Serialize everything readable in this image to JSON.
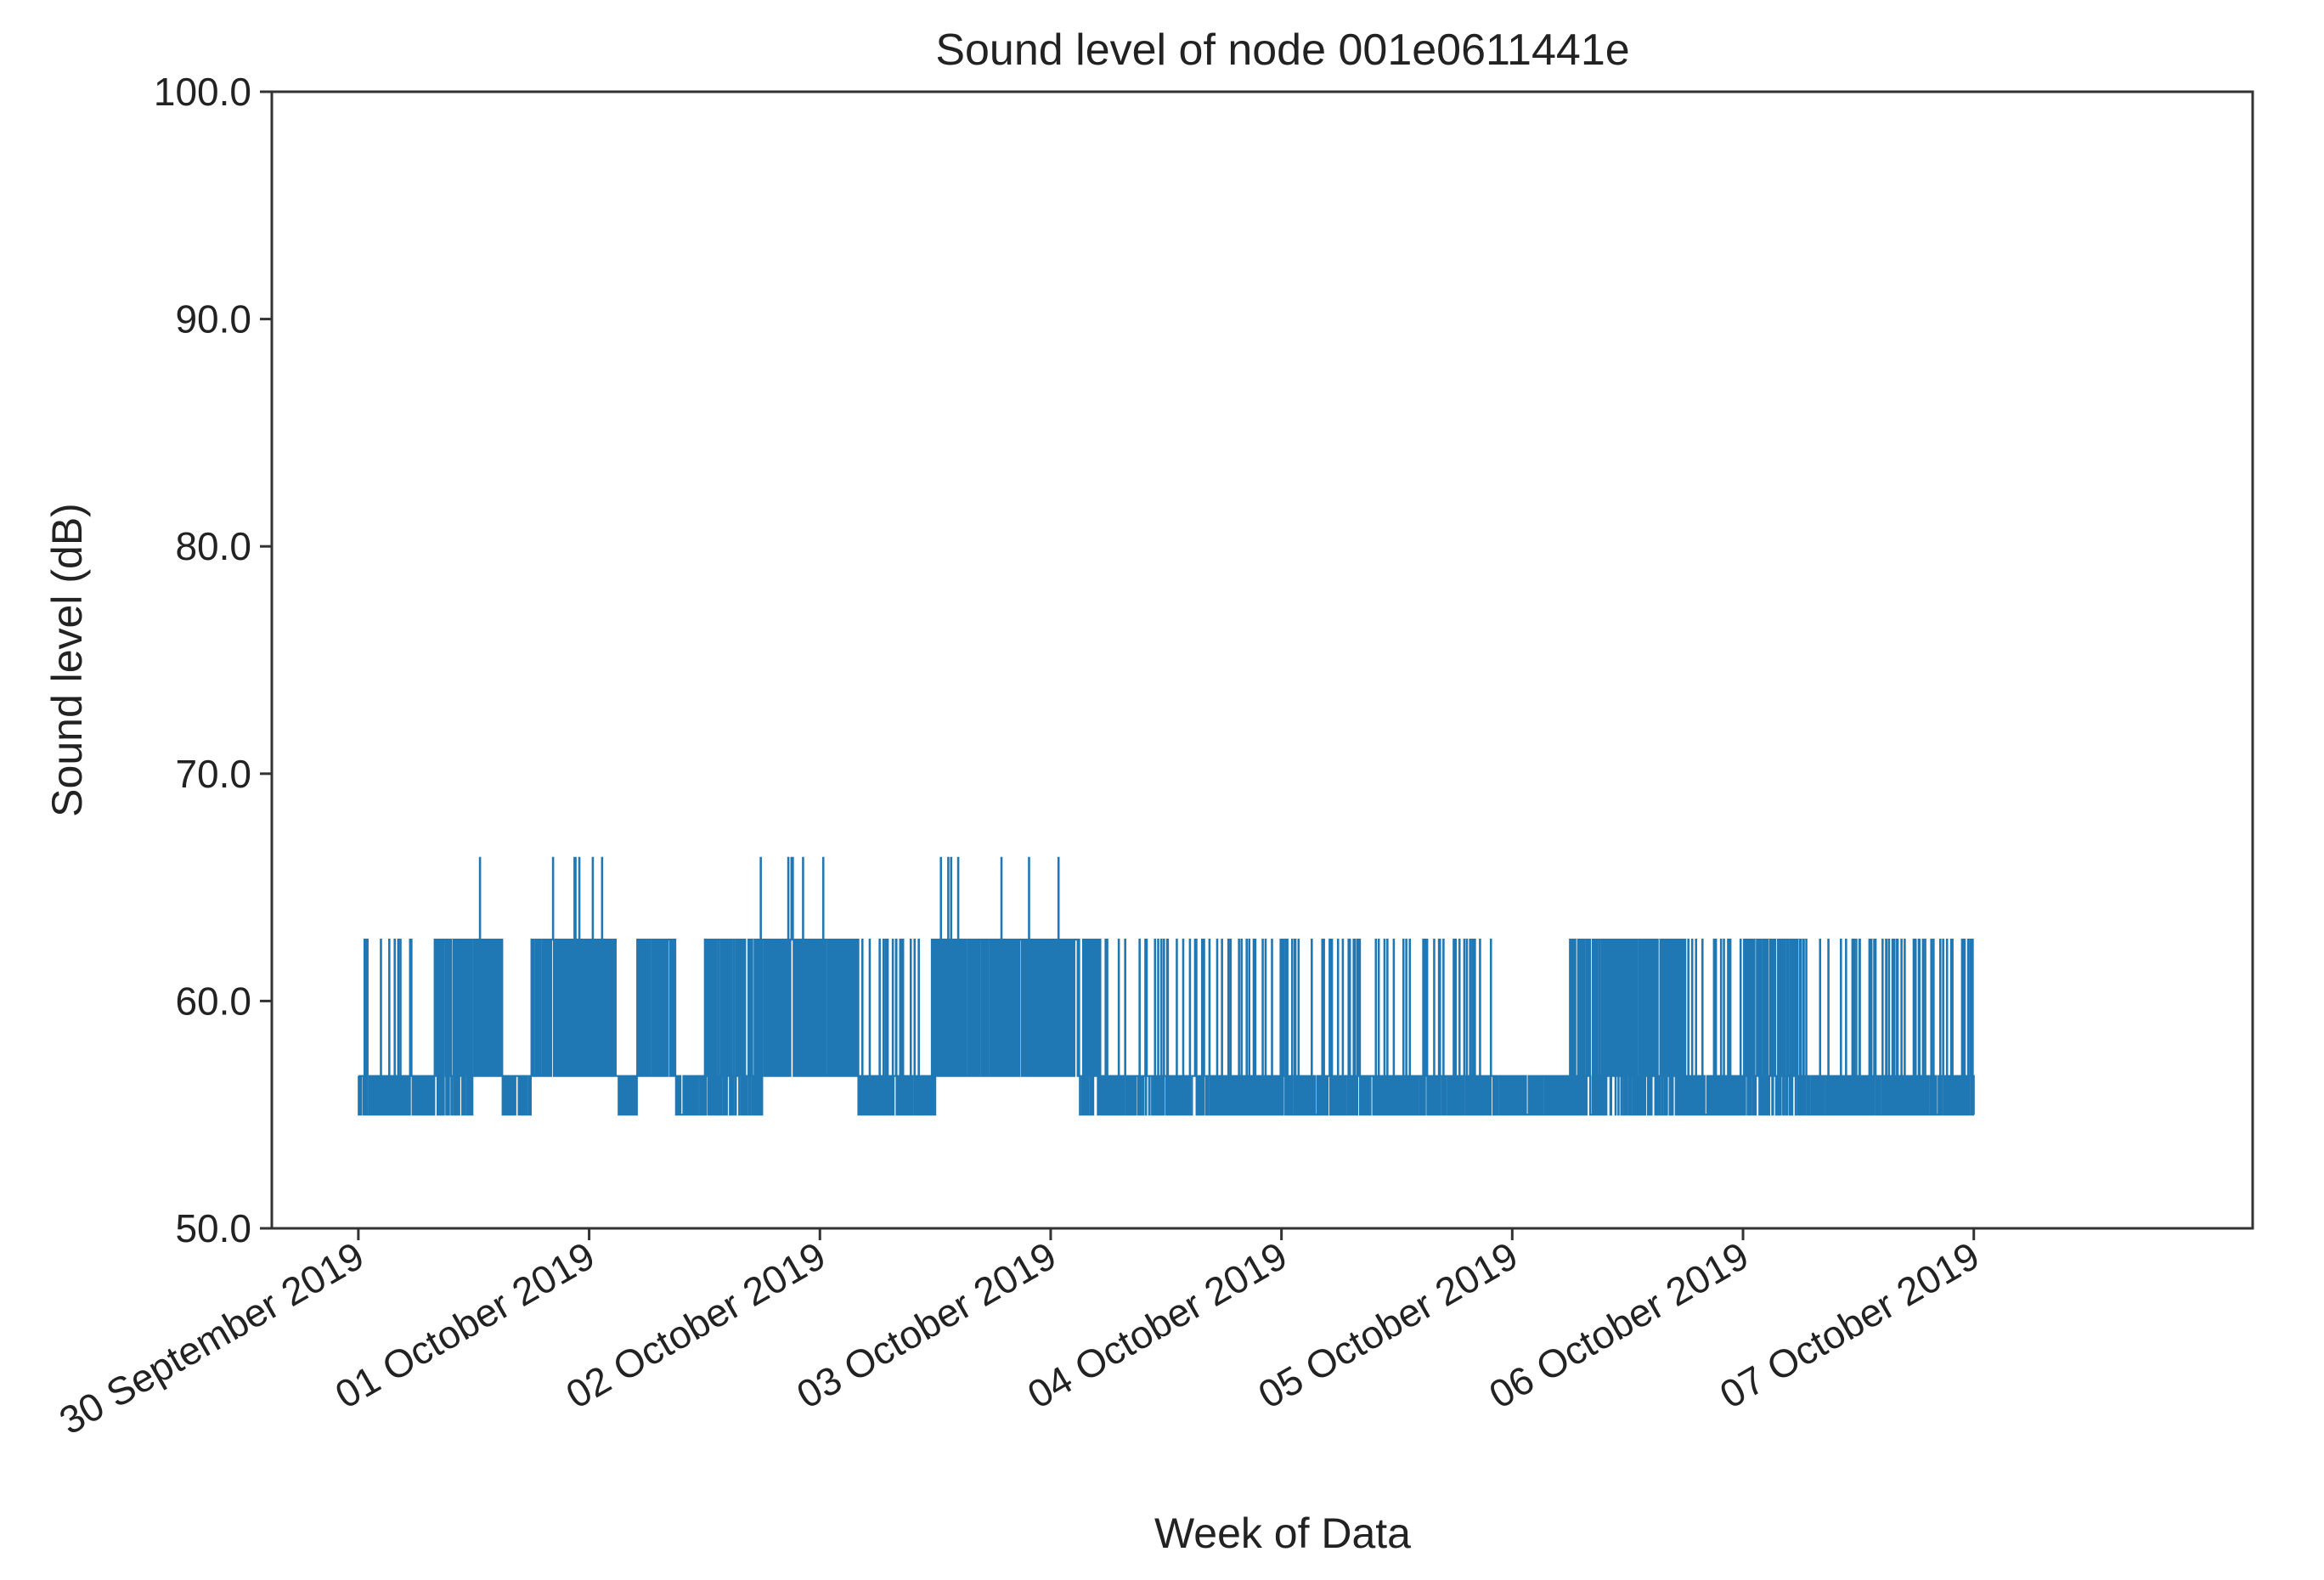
{
  "chart_data": {
    "type": "line",
    "title": "Sound level of node 001e0611441e",
    "xlabel": "Week of Data",
    "ylabel": "Sound level (dB)",
    "ylim": [
      50.0,
      100.0
    ],
    "xlim": [
      "2019-09-29T15:00",
      "2019-10-08T05:00"
    ],
    "y_ticks": [
      "50.0",
      "60.0",
      "70.0",
      "80.0",
      "90.0",
      "100.0"
    ],
    "x_ticks": [
      {
        "date": "2019-09-30",
        "label": "30 September 2019"
      },
      {
        "date": "2019-10-01",
        "label": "01 October 2019"
      },
      {
        "date": "2019-10-02",
        "label": "02 October 2019"
      },
      {
        "date": "2019-10-03",
        "label": "03 October 2019"
      },
      {
        "date": "2019-10-04",
        "label": "04 October 2019"
      },
      {
        "date": "2019-10-05",
        "label": "05 October 2019"
      },
      {
        "date": "2019-10-06",
        "label": "06 October 2019"
      },
      {
        "date": "2019-10-07",
        "label": "07 October 2019"
      }
    ],
    "grid": false,
    "series": [
      {
        "color": "#1f77b4",
        "start": "2019-09-30T00:00",
        "end": "2019-10-07T00:00",
        "levels": [
          55.0,
          56.7,
          62.7,
          66.3
        ],
        "note_pattern": "dense step signal alternating between levels",
        "band_segments": [
          {
            "from": "2019-09-30T00:00",
            "to": "2019-09-30T08:00",
            "low": 55.0,
            "high": 56.7,
            "spikes_to": 62.7
          },
          {
            "from": "2019-09-30T08:00",
            "to": "2019-09-30T12:00",
            "low": 55.0,
            "high": 62.7
          },
          {
            "from": "2019-09-30T12:00",
            "to": "2019-09-30T15:00",
            "low": 56.7,
            "high": 62.7,
            "peak": 66.3
          },
          {
            "from": "2019-09-30T18:00",
            "to": "2019-10-01T03:00",
            "low": 56.7,
            "high": 62.7,
            "peak": 66.3
          },
          {
            "from": "2019-10-01T05:00",
            "to": "2019-10-01T09:00",
            "low": 56.7,
            "high": 62.7
          },
          {
            "from": "2019-10-01T12:00",
            "to": "2019-10-01T18:00",
            "low": 55.0,
            "high": 62.7,
            "peak": 66.3
          },
          {
            "from": "2019-10-01T18:00",
            "to": "2019-10-02T04:00",
            "low": 56.7,
            "high": 62.7,
            "peak": 66.3
          },
          {
            "from": "2019-10-02T04:00",
            "to": "2019-10-02T12:00",
            "low": 55.0,
            "high": 56.7,
            "spikes_to": 62.7
          },
          {
            "from": "2019-10-02T12:00",
            "to": "2019-10-03T03:00",
            "low": 56.7,
            "high": 62.7,
            "peak": 66.3
          },
          {
            "from": "2019-10-03T03:00",
            "to": "2019-10-03T06:00",
            "low": 55.0,
            "high": 62.7
          },
          {
            "from": "2019-10-03T06:00",
            "to": "2019-10-04T00:00",
            "low": 55.0,
            "high": 56.7,
            "spikes_to": 62.7
          },
          {
            "from": "2019-10-04T00:00",
            "to": "2019-10-05T00:00",
            "low": 55.0,
            "high": 56.7,
            "spikes_to": 62.7
          },
          {
            "from": "2019-10-05T00:00",
            "to": "2019-10-05T06:00",
            "low": 55.0,
            "high": 56.7
          },
          {
            "from": "2019-10-05T06:00",
            "to": "2019-10-05T18:00",
            "low": 55.0,
            "high": 62.7
          },
          {
            "from": "2019-10-05T18:00",
            "to": "2019-10-06T00:00",
            "low": 55.0,
            "high": 56.7,
            "spikes_to": 62.7
          },
          {
            "from": "2019-10-06T00:00",
            "to": "2019-10-06T06:00",
            "low": 55.0,
            "high": 62.7,
            "peak": 66.3
          },
          {
            "from": "2019-10-06T06:00",
            "to": "2019-10-07T00:00",
            "low": 55.0,
            "high": 56.7,
            "spikes_to": 62.7
          }
        ]
      }
    ]
  }
}
